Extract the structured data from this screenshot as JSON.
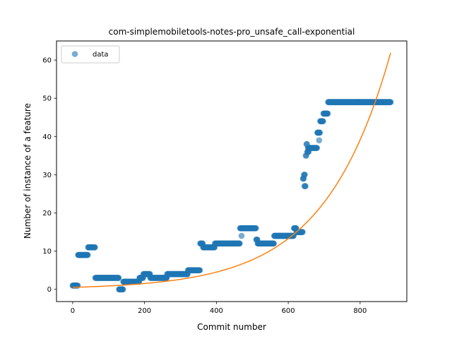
{
  "chart_data": {
    "type": "scatter",
    "title": "com-simplemobiletools-notes-pro_unsafe_call-exponential",
    "xlabel": "Commit number",
    "ylabel": "Number of instance of a feature",
    "xlim": [
      -45,
      930
    ],
    "ylim": [
      -3.2,
      65
    ],
    "xticks": [
      0,
      200,
      400,
      600,
      800
    ],
    "yticks": [
      0,
      10,
      20,
      30,
      40,
      50,
      60
    ],
    "grid": false,
    "legend": {
      "position": "top-left",
      "entries": [
        "data"
      ]
    },
    "colors": {
      "data": "#1f77b4",
      "fit": "#ff7f0e"
    },
    "series": [
      {
        "name": "data",
        "kind": "scatter",
        "segments": [
          [
            0,
            14,
            1
          ],
          [
            15,
            42,
            9
          ],
          [
            43,
            62,
            11
          ],
          [
            63,
            128,
            3
          ],
          [
            129,
            140,
            0
          ],
          [
            141,
            185,
            2
          ],
          [
            186,
            196,
            3
          ],
          [
            197,
            215,
            4
          ],
          [
            216,
            262,
            3
          ],
          [
            263,
            320,
            4
          ],
          [
            321,
            354,
            5
          ],
          [
            355,
            362,
            12
          ],
          [
            363,
            395,
            11
          ],
          [
            396,
            465,
            12
          ],
          [
            466,
            510,
            16
          ],
          [
            511,
            514,
            13
          ],
          [
            515,
            560,
            12
          ],
          [
            561,
            615,
            14
          ],
          [
            616,
            622,
            16
          ],
          [
            623,
            640,
            15
          ],
          [
            641,
            643,
            29
          ],
          [
            644,
            646,
            30
          ],
          [
            647,
            648,
            27
          ],
          [
            649,
            650,
            35
          ],
          [
            651,
            652,
            38
          ],
          [
            653,
            655,
            36
          ],
          [
            656,
            680,
            37
          ],
          [
            681,
            688,
            41
          ],
          [
            689,
            697,
            44
          ],
          [
            698,
            710,
            46
          ],
          [
            711,
            885,
            49
          ]
        ],
        "extra_points": [
          [
            470,
            14
          ],
          [
            645,
            27
          ],
          [
            655,
            37
          ],
          [
            657,
            36
          ],
          [
            686,
            39
          ]
        ]
      },
      {
        "name": "",
        "kind": "line",
        "function": "y = a*exp(b*x)",
        "params": {
          "a": 0.52,
          "b": 0.0054
        },
        "x_range": [
          0,
          885
        ]
      }
    ]
  }
}
